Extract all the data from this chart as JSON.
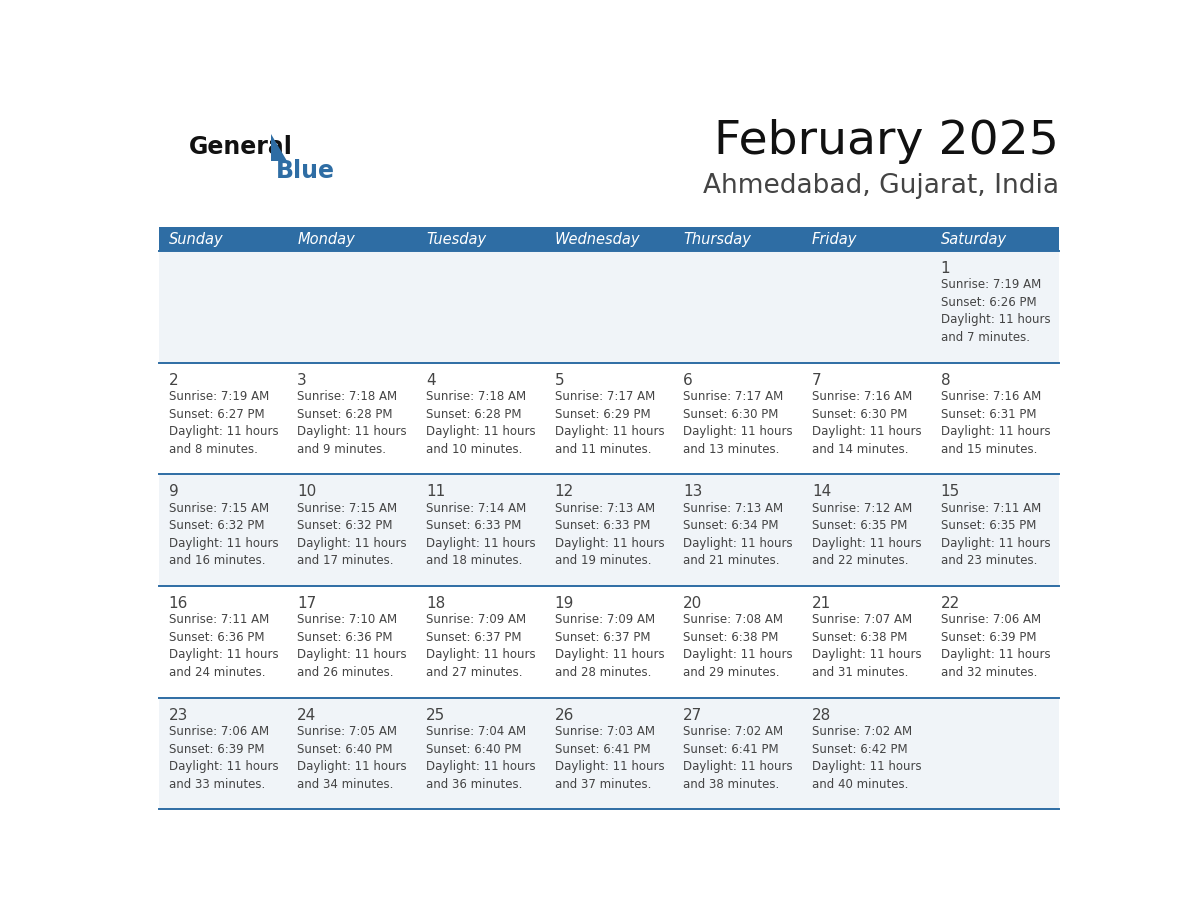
{
  "title": "February 2025",
  "subtitle": "Ahmedabad, Gujarat, India",
  "days_of_week": [
    "Sunday",
    "Monday",
    "Tuesday",
    "Wednesday",
    "Thursday",
    "Friday",
    "Saturday"
  ],
  "header_bg": "#2E6DA4",
  "header_text": "#FFFFFF",
  "cell_bg_odd": "#F0F4F8",
  "cell_bg_even": "#FFFFFF",
  "border_color": "#2E6DA4",
  "text_color": "#444444",
  "title_color": "#111111",
  "subtitle_color": "#444444",
  "logo_general_color": "#111111",
  "logo_blue_color": "#2E6DA4",
  "logo_triangle_color": "#2E6DA4",
  "calendar_data": [
    [
      null,
      null,
      null,
      null,
      null,
      null,
      {
        "day": "1",
        "sunrise": "7:19 AM",
        "sunset": "6:26 PM",
        "daylight": "11 hours\nand 7 minutes."
      }
    ],
    [
      {
        "day": "2",
        "sunrise": "7:19 AM",
        "sunset": "6:27 PM",
        "daylight": "11 hours\nand 8 minutes."
      },
      {
        "day": "3",
        "sunrise": "7:18 AM",
        "sunset": "6:28 PM",
        "daylight": "11 hours\nand 9 minutes."
      },
      {
        "day": "4",
        "sunrise": "7:18 AM",
        "sunset": "6:28 PM",
        "daylight": "11 hours\nand 10 minutes."
      },
      {
        "day": "5",
        "sunrise": "7:17 AM",
        "sunset": "6:29 PM",
        "daylight": "11 hours\nand 11 minutes."
      },
      {
        "day": "6",
        "sunrise": "7:17 AM",
        "sunset": "6:30 PM",
        "daylight": "11 hours\nand 13 minutes."
      },
      {
        "day": "7",
        "sunrise": "7:16 AM",
        "sunset": "6:30 PM",
        "daylight": "11 hours\nand 14 minutes."
      },
      {
        "day": "8",
        "sunrise": "7:16 AM",
        "sunset": "6:31 PM",
        "daylight": "11 hours\nand 15 minutes."
      }
    ],
    [
      {
        "day": "9",
        "sunrise": "7:15 AM",
        "sunset": "6:32 PM",
        "daylight": "11 hours\nand 16 minutes."
      },
      {
        "day": "10",
        "sunrise": "7:15 AM",
        "sunset": "6:32 PM",
        "daylight": "11 hours\nand 17 minutes."
      },
      {
        "day": "11",
        "sunrise": "7:14 AM",
        "sunset": "6:33 PM",
        "daylight": "11 hours\nand 18 minutes."
      },
      {
        "day": "12",
        "sunrise": "7:13 AM",
        "sunset": "6:33 PM",
        "daylight": "11 hours\nand 19 minutes."
      },
      {
        "day": "13",
        "sunrise": "7:13 AM",
        "sunset": "6:34 PM",
        "daylight": "11 hours\nand 21 minutes."
      },
      {
        "day": "14",
        "sunrise": "7:12 AM",
        "sunset": "6:35 PM",
        "daylight": "11 hours\nand 22 minutes."
      },
      {
        "day": "15",
        "sunrise": "7:11 AM",
        "sunset": "6:35 PM",
        "daylight": "11 hours\nand 23 minutes."
      }
    ],
    [
      {
        "day": "16",
        "sunrise": "7:11 AM",
        "sunset": "6:36 PM",
        "daylight": "11 hours\nand 24 minutes."
      },
      {
        "day": "17",
        "sunrise": "7:10 AM",
        "sunset": "6:36 PM",
        "daylight": "11 hours\nand 26 minutes."
      },
      {
        "day": "18",
        "sunrise": "7:09 AM",
        "sunset": "6:37 PM",
        "daylight": "11 hours\nand 27 minutes."
      },
      {
        "day": "19",
        "sunrise": "7:09 AM",
        "sunset": "6:37 PM",
        "daylight": "11 hours\nand 28 minutes."
      },
      {
        "day": "20",
        "sunrise": "7:08 AM",
        "sunset": "6:38 PM",
        "daylight": "11 hours\nand 29 minutes."
      },
      {
        "day": "21",
        "sunrise": "7:07 AM",
        "sunset": "6:38 PM",
        "daylight": "11 hours\nand 31 minutes."
      },
      {
        "day": "22",
        "sunrise": "7:06 AM",
        "sunset": "6:39 PM",
        "daylight": "11 hours\nand 32 minutes."
      }
    ],
    [
      {
        "day": "23",
        "sunrise": "7:06 AM",
        "sunset": "6:39 PM",
        "daylight": "11 hours\nand 33 minutes."
      },
      {
        "day": "24",
        "sunrise": "7:05 AM",
        "sunset": "6:40 PM",
        "daylight": "11 hours\nand 34 minutes."
      },
      {
        "day": "25",
        "sunrise": "7:04 AM",
        "sunset": "6:40 PM",
        "daylight": "11 hours\nand 36 minutes."
      },
      {
        "day": "26",
        "sunrise": "7:03 AM",
        "sunset": "6:41 PM",
        "daylight": "11 hours\nand 37 minutes."
      },
      {
        "day": "27",
        "sunrise": "7:02 AM",
        "sunset": "6:41 PM",
        "daylight": "11 hours\nand 38 minutes."
      },
      {
        "day": "28",
        "sunrise": "7:02 AM",
        "sunset": "6:42 PM",
        "daylight": "11 hours\nand 40 minutes."
      },
      null
    ]
  ]
}
